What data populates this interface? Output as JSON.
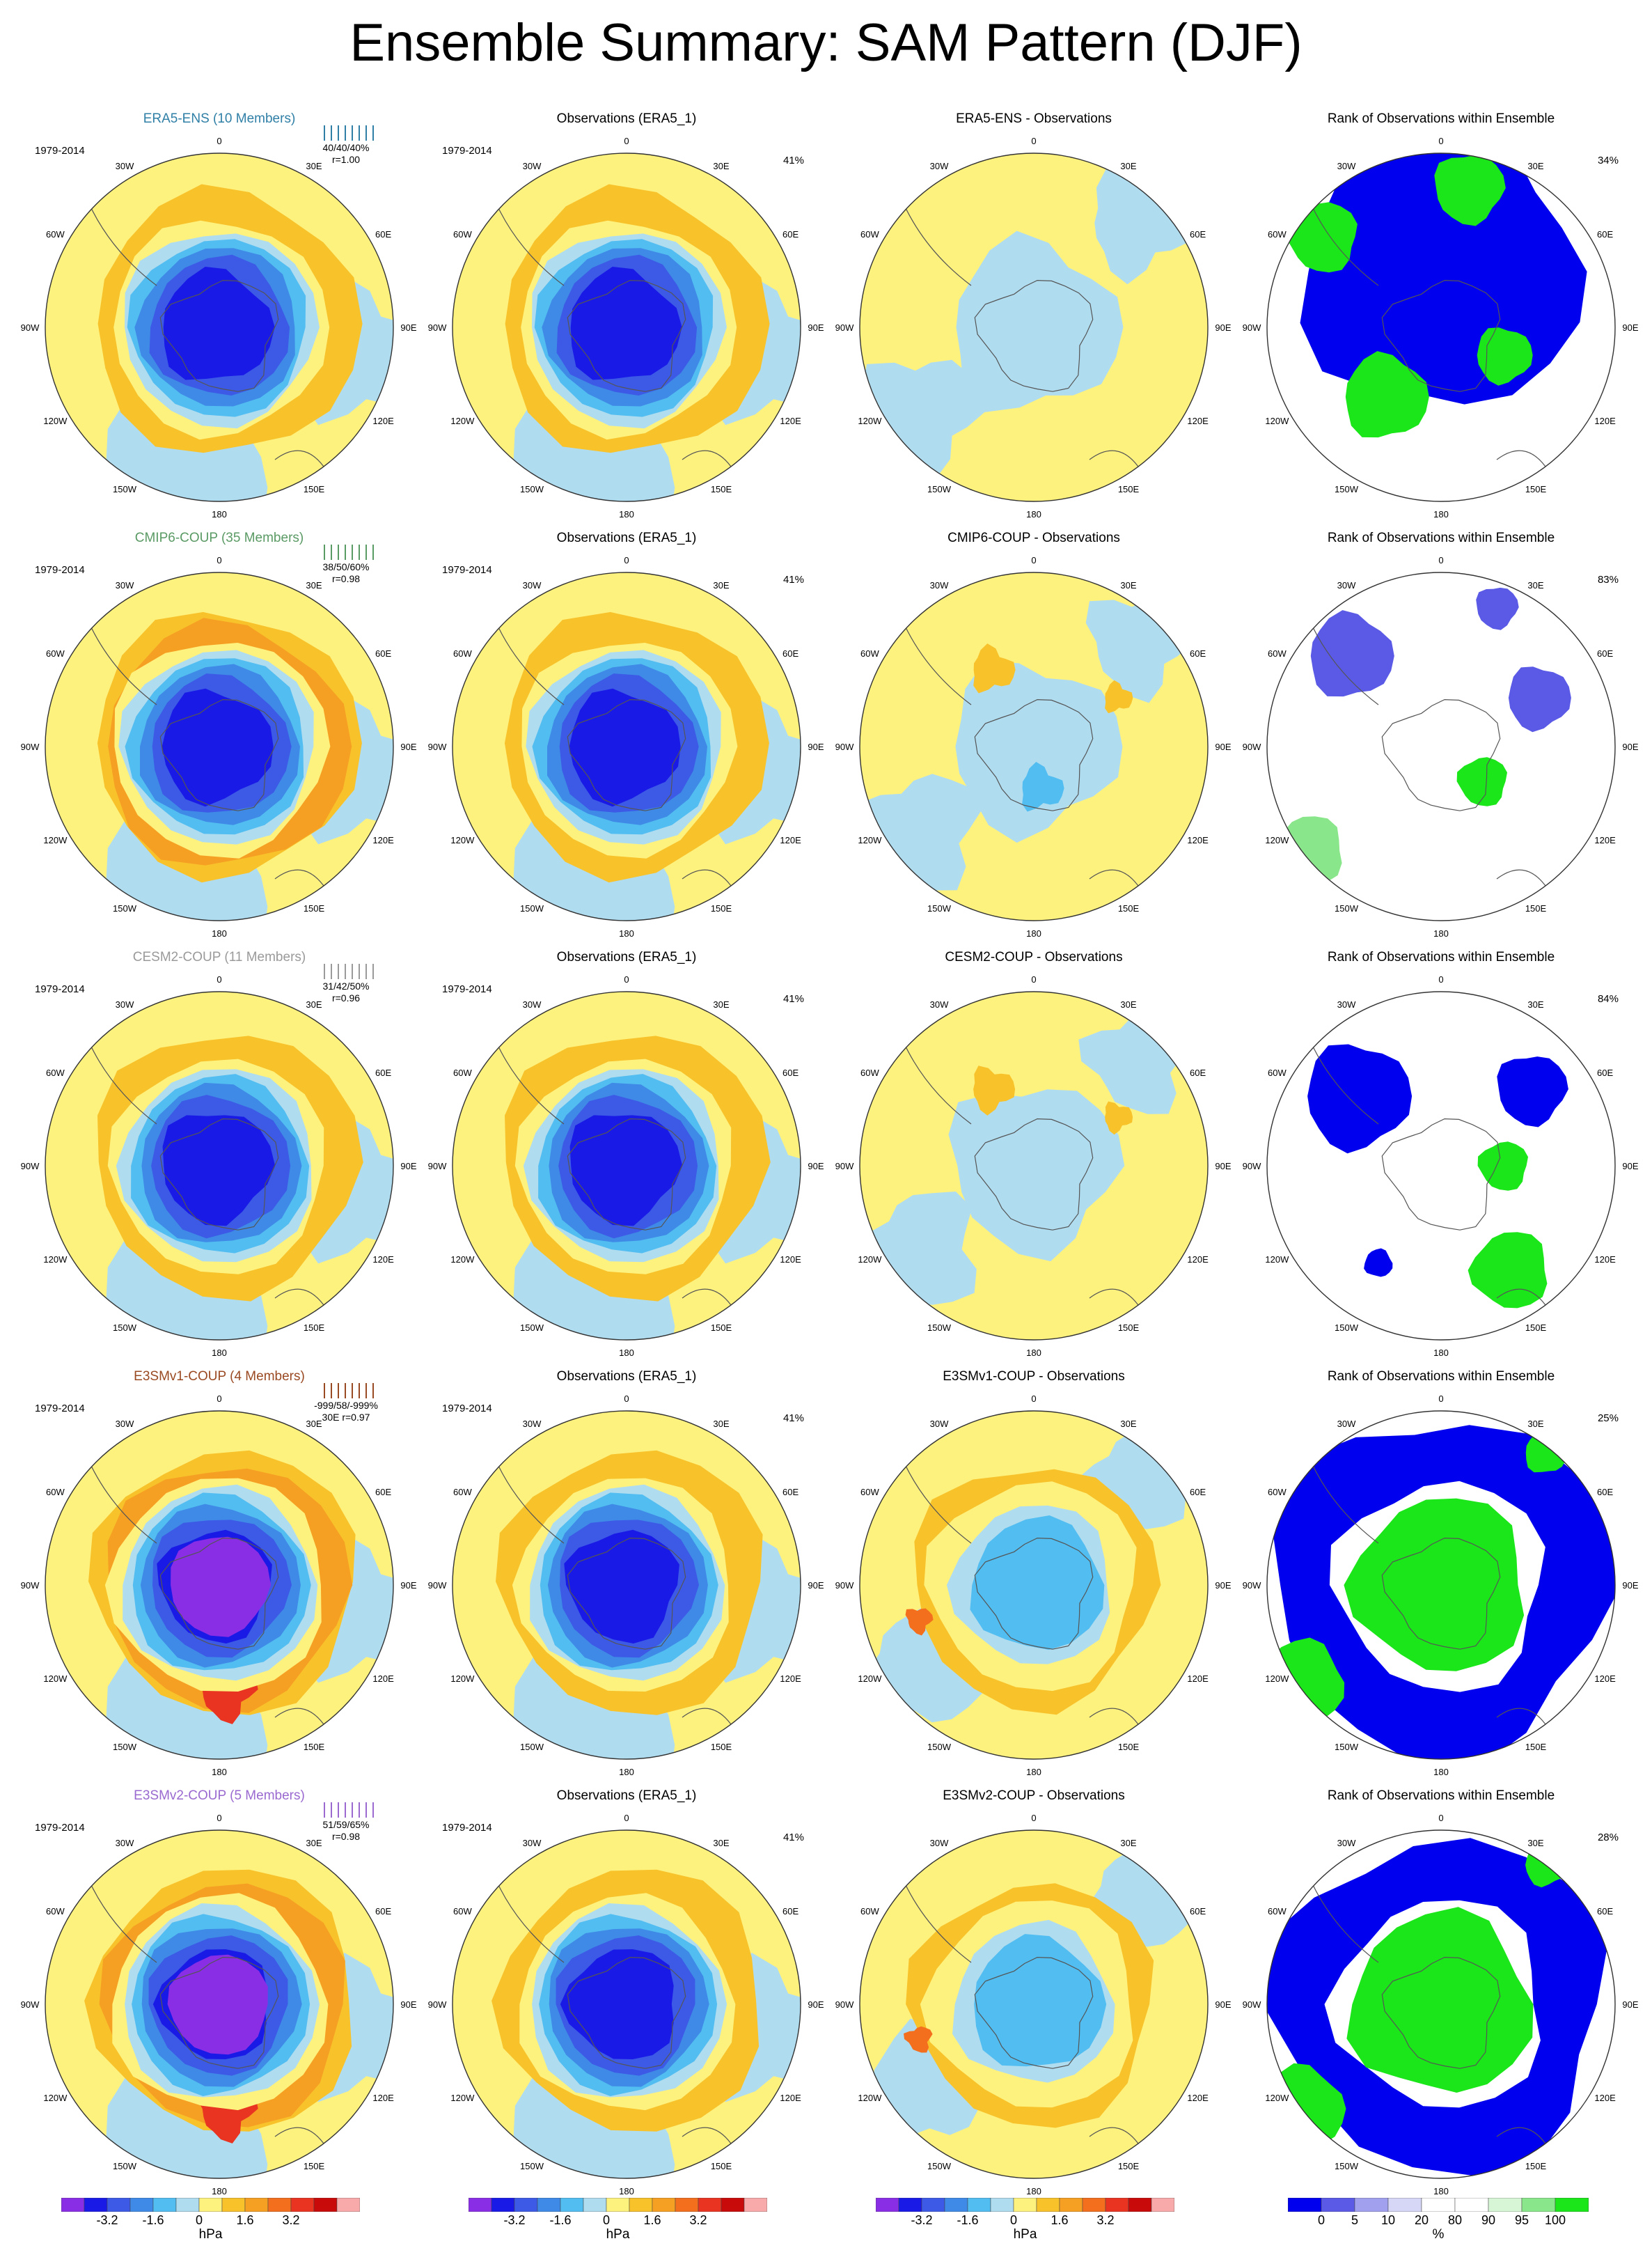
{
  "title": "Ensemble Summary: SAM Pattern (DJF)",
  "longitude_labels": [
    "0",
    "30E",
    "60E",
    "90E",
    "120E",
    "150E",
    "180",
    "150W",
    "120W",
    "90W",
    "60W",
    "30W"
  ],
  "colors": {
    "ensemble": [
      "#2f7fa6",
      "#5a9a64",
      "#9a9a9a",
      "#9a4a22",
      "#9a6ad0"
    ],
    "cb_pressure": [
      "#8a2ee6",
      "#1a1ae6",
      "#3c5ae6",
      "#3f8ae6",
      "#52bdf0",
      "#b0dcf0",
      "#fef27f",
      "#f8c22b",
      "#f6a023",
      "#f46f1d",
      "#e83420",
      "#c80a0a",
      "#f8aaaa"
    ],
    "cb_rank": [
      "#0000ee",
      "#5a5ae6",
      "#a0a0ee",
      "#d6d6f6",
      "#ffffff",
      "#ffffff",
      "#d6f6d6",
      "#8ae68a",
      "#1ae61a"
    ]
  },
  "colorbars": {
    "pressure": {
      "ticks": [
        "-3.2",
        "-1.6",
        "0",
        "1.6",
        "3.2"
      ],
      "unit": "hPa"
    },
    "rank": {
      "ticks": [
        "0",
        "5",
        "10",
        "20",
        "80",
        "90",
        "95",
        "100"
      ],
      "unit": "%"
    }
  },
  "rows": [
    {
      "ensemble": {
        "title": "ERA5-ENS (10 Members)",
        "period": "1979-2014",
        "stats": "40/40/40%",
        "corr": "r=1.00"
      },
      "obs": {
        "title": "Observations (ERA5_1)",
        "period": "1979-2014",
        "pct": "41%"
      },
      "diff": {
        "title": "ERA5-ENS - Observations"
      },
      "rank": {
        "title": "Rank of Observations within Ensemble",
        "pct": "34%"
      }
    },
    {
      "ensemble": {
        "title": "CMIP6-COUP (35 Members)",
        "period": "1979-2014",
        "stats": "38/50/60%",
        "corr": "r=0.98"
      },
      "obs": {
        "title": "Observations (ERA5_1)",
        "period": "1979-2014",
        "pct": "41%"
      },
      "diff": {
        "title": "CMIP6-COUP - Observations"
      },
      "rank": {
        "title": "Rank of Observations within Ensemble",
        "pct": "83%"
      }
    },
    {
      "ensemble": {
        "title": "CESM2-COUP (11 Members)",
        "period": "1979-2014",
        "stats": "31/42/50%",
        "corr": "r=0.96"
      },
      "obs": {
        "title": "Observations (ERA5_1)",
        "period": "1979-2014",
        "pct": "41%"
      },
      "diff": {
        "title": "CESM2-COUP - Observations"
      },
      "rank": {
        "title": "Rank of Observations within Ensemble",
        "pct": "84%"
      }
    },
    {
      "ensemble": {
        "title": "E3SMv1-COUP (4 Members)",
        "period": "1979-2014",
        "stats": "-999/58/-999%",
        "corr": "30E r=0.97"
      },
      "obs": {
        "title": "Observations (ERA5_1)",
        "period": "1979-2014",
        "pct": "41%"
      },
      "diff": {
        "title": "E3SMv1-COUP - Observations"
      },
      "rank": {
        "title": "Rank of Observations within Ensemble",
        "pct": "25%"
      }
    },
    {
      "ensemble": {
        "title": "E3SMv2-COUP (5 Members)",
        "period": "1979-2014",
        "stats": "51/59/65%",
        "corr": "r=0.98"
      },
      "obs": {
        "title": "Observations (ERA5_1)",
        "period": "1979-2014",
        "pct": "41%"
      },
      "diff": {
        "title": "E3SMv2-COUP - Observations"
      },
      "rank": {
        "title": "Rank of Observations within Ensemble",
        "pct": "28%"
      }
    }
  ],
  "chart_data": {
    "type": "heatmap",
    "projection": "south-polar-stereographic",
    "grid": false,
    "value_levels_hPa": [
      -3.2,
      -1.6,
      0,
      1.6,
      3.2
    ],
    "rank_levels_percent": [
      0,
      5,
      10,
      20,
      80,
      90,
      95,
      100
    ],
    "panels_per_row": [
      "ensemble-mean",
      "observations",
      "difference",
      "rank"
    ]
  }
}
